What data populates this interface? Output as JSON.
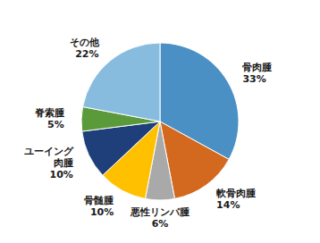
{
  "chart_data": {
    "type": "pie",
    "categories": [
      "骨肉腫\n33%",
      "軟骨肉腫\n14%",
      "悪性リンパ腫\n6%",
      "骨髄腫\n10%",
      "ユーイング\n肉腫\n10%",
      "脊索腫\n5%",
      "その他\n22%"
    ],
    "values": [
      33,
      14,
      6,
      10,
      10,
      5,
      22
    ],
    "colors": [
      "#4A90C4",
      "#D2691E",
      "#A9A9A9",
      "#FFC000",
      "#1F3F7A",
      "#5A9A3A",
      "#87BCDE"
    ]
  }
}
